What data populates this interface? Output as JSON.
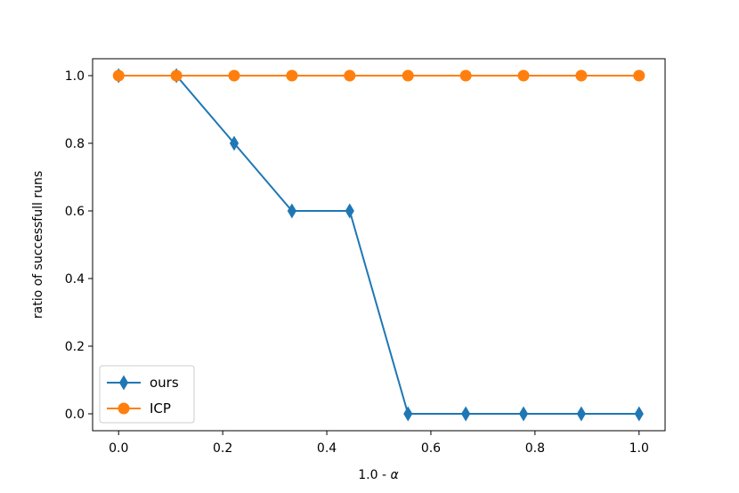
{
  "chart_data": {
    "type": "line",
    "title": "",
    "xlabel": "1.0 - ",
    "xlabel_symbol": "α",
    "ylabel": "ratio of successfull runs",
    "xlim": [
      -0.05,
      1.05
    ],
    "ylim": [
      -0.05,
      1.05
    ],
    "xticks": [
      0.0,
      0.2,
      0.4,
      0.6,
      0.8,
      1.0
    ],
    "xtick_labels": [
      "0.0",
      "0.2",
      "0.4",
      "0.6",
      "0.8",
      "1.0"
    ],
    "yticks": [
      0.0,
      0.2,
      0.4,
      0.6,
      0.8,
      1.0
    ],
    "ytick_labels": [
      "0.0",
      "0.2",
      "0.4",
      "0.6",
      "0.8",
      "1.0"
    ],
    "grid": false,
    "legend_position": "lower-left",
    "x": [
      0.0,
      0.111,
      0.222,
      0.333,
      0.444,
      0.556,
      0.667,
      0.778,
      0.889,
      1.0
    ],
    "series": [
      {
        "name": "ours",
        "color": "#1f77b4",
        "marker": "diamond",
        "values": [
          1.0,
          1.0,
          0.8,
          0.6,
          0.6,
          0.0,
          0.0,
          0.0,
          0.0,
          0.0
        ]
      },
      {
        "name": "ICP",
        "color": "#ff7f0e",
        "marker": "circle",
        "values": [
          1.0,
          1.0,
          1.0,
          1.0,
          1.0,
          1.0,
          1.0,
          1.0,
          1.0,
          1.0
        ]
      }
    ]
  }
}
